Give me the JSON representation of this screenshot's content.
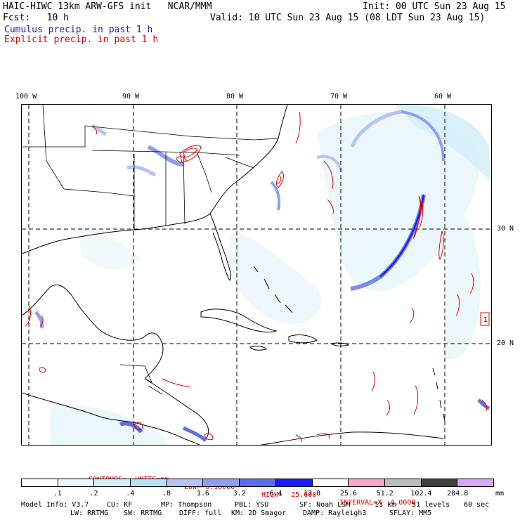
{
  "header": {
    "title": "HAIC-HIWC 13km ARW-GFS init   NCAR/MMM",
    "init": "Init: 00 UTC Sun 23 Aug 15",
    "fcst": "Fcst:   10 h",
    "valid": "Valid: 10 UTC Sun 23 Aug 15 (08 LDT Sun 23 Aug 15)",
    "legend_cumulus": "Cumulus precip. in past 1 h",
    "legend_explicit": "Explicit precip. in past 1 h"
  },
  "map": {
    "lon_labels": [
      "100 W",
      "90 W",
      "80 W",
      "70 W",
      "60 W"
    ],
    "lat_labels": [
      "30 N",
      "20 N"
    ],
    "marker": "1",
    "colors": {
      "cumulus": "#1a1aa6",
      "explicit": "#e00000"
    }
  },
  "contours": {
    "label": "CONTOURS:  UNITS=mm",
    "low": "LOW= 0.10000",
    "high": "HIGH=  25.600",
    "interval": "INTERVAL=X  4.0000"
  },
  "colorbar": {
    "labels": [
      ".1",
      ".2",
      ".4",
      ".8",
      "1.6",
      "3.2",
      "6.4",
      "12.8",
      "25.6",
      "51.2",
      "102.4",
      "204.8"
    ],
    "units": "mm",
    "colors": [
      "#ffffff",
      "#eaf6fb",
      "#d2eef9",
      "#b6e2f6",
      "#b7c3f2",
      "#8f9ef0",
      "#5c6df0",
      "#1a1aff",
      "#ffffff",
      "#f8a8c8",
      "#bdbdbd",
      "#3f3f3f",
      "#d9a8f5"
    ]
  },
  "footer": {
    "line1": {
      "model": "Model Info: V3.7",
      "cu": "CU: KF",
      "mp": "MP: Thompson",
      "pbl": "PBL: YSU",
      "sf": "SF: Noah LSM",
      "res": "13 km",
      "levels": "51 levels",
      "dt": "60 sec"
    },
    "line2": {
      "lw": "LW: RRTMG",
      "sw": "SW: RRTMG",
      "diff": "DIFF: full",
      "km": "KM: 2D Smagor",
      "damp": "DAMP: Rayleigh3",
      "sflay": "SFLAY: MM5"
    }
  }
}
